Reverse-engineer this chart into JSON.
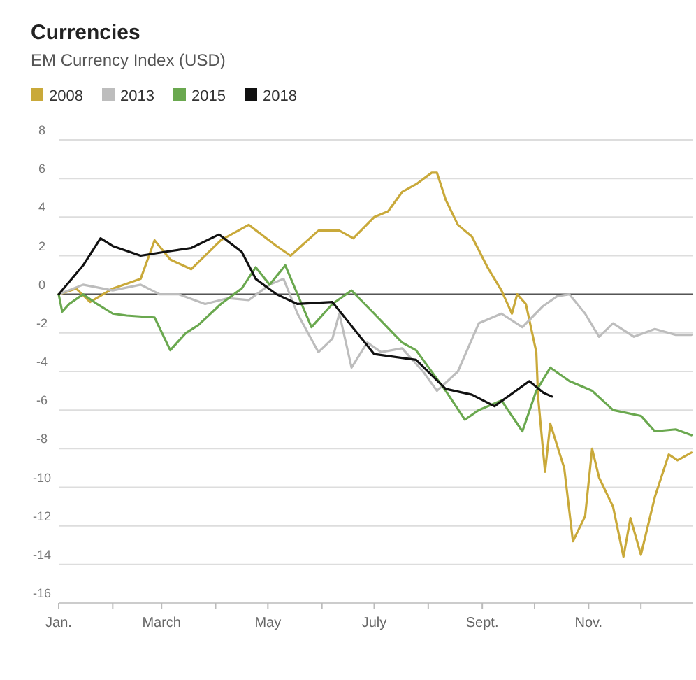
{
  "chart_data": {
    "type": "line",
    "title": "Currencies",
    "subtitle": "EM Currency Index (USD)",
    "xlim": [
      "--01-01",
      "--12-31"
    ],
    "xticks": [
      {
        "value": "--01-01",
        "label": "Jan."
      },
      {
        "value": "--02-01",
        "label": null
      },
      {
        "value": "--03-01",
        "label": "March"
      },
      {
        "value": "--04-01",
        "label": null
      },
      {
        "value": "--05-01",
        "label": "May"
      },
      {
        "value": "--06-01",
        "label": null
      },
      {
        "value": "--07-01",
        "label": "July"
      },
      {
        "value": "--08-01",
        "label": null
      },
      {
        "value": "--09-01",
        "label": "Sept."
      },
      {
        "value": "--10-01",
        "label": null
      },
      {
        "value": "--11-01",
        "label": "Nov."
      },
      {
        "value": "--12-01",
        "label": null
      }
    ],
    "ylim": [
      -16,
      8
    ],
    "yticks": [
      8,
      6,
      4,
      2,
      0,
      -2,
      -4,
      -6,
      -8,
      -10,
      -12,
      -14,
      -16
    ],
    "grid": "y",
    "legend": "top left",
    "line_style": "solid",
    "marker": "none",
    "ref_lines": [
      {
        "axis": "y",
        "value": 0,
        "color": "#555555"
      }
    ],
    "series": [
      {
        "name": "2008",
        "color": "#c9a93a",
        "x": [
          "--01-01",
          "--01-11",
          "--01-19",
          "--02-01",
          "--02-17",
          "--02-25",
          "--03-06",
          "--03-18",
          "--04-04",
          "--04-20",
          "--05-06",
          "--05-14",
          "--05-30",
          "--06-11",
          "--06-19",
          "--07-01",
          "--07-09",
          "--07-17",
          "--07-25",
          "--08-03",
          "--08-06",
          "--08-11",
          "--08-18",
          "--08-26",
          "--09-04",
          "--09-12",
          "--09-18",
          "--09-21",
          "--09-26",
          "--10-02",
          "--10-03",
          "--10-07",
          "--10-10",
          "--10-18",
          "--10-23",
          "--10-30",
          "--11-03",
          "--11-07",
          "--11-15",
          "--11-21",
          "--11-25",
          "--12-01",
          "--12-09",
          "--12-17",
          "--12-22",
          "--12-30"
        ],
        "values": [
          0,
          0.3,
          -0.4,
          0.3,
          0.8,
          2.8,
          1.8,
          1.3,
          2.8,
          3.6,
          2.5,
          2,
          3.3,
          3.3,
          2.9,
          4,
          4.3,
          5.3,
          5.7,
          6.3,
          6.3,
          4.9,
          3.6,
          3,
          1.4,
          0.2,
          -1,
          0,
          -0.5,
          -3,
          -5.3,
          -9.2,
          -6.7,
          -9,
          -12.8,
          -11.5,
          -8,
          -9.5,
          -11,
          -13.6,
          -11.6,
          -13.5,
          -10.5,
          -8.3,
          -8.6,
          -8.2
        ]
      },
      {
        "name": "2013",
        "color": "#bdbdbd",
        "x": [
          "--01-01",
          "--01-15",
          "--02-01",
          "--02-17",
          "--02-28",
          "--03-11",
          "--03-26",
          "--04-08",
          "--04-20",
          "--05-02",
          "--05-10",
          "--05-18",
          "--05-30",
          "--06-07",
          "--06-11",
          "--06-18",
          "--06-27",
          "--07-05",
          "--07-17",
          "--07-29",
          "--08-06",
          "--08-18",
          "--08-30",
          "--09-12",
          "--09-24",
          "--10-06",
          "--10-14",
          "--10-21",
          "--10-30",
          "--11-07",
          "--11-15",
          "--11-27",
          "--12-09",
          "--12-21",
          "--12-30"
        ],
        "values": [
          0,
          0.5,
          0.2,
          0.5,
          0,
          0,
          -0.5,
          -0.2,
          -0.3,
          0.5,
          0.8,
          -1,
          -3,
          -2.3,
          -1,
          -3.8,
          -2.5,
          -3,
          -2.8,
          -4,
          -5,
          -4,
          -1.5,
          -1,
          -1.7,
          -0.6,
          -0.1,
          0,
          -1,
          -2.2,
          -1.5,
          -2.2,
          -1.8,
          -2.1,
          -2.1
        ]
      },
      {
        "name": "2015",
        "color": "#6aa84f",
        "x": [
          "--01-01",
          "--01-03",
          "--01-07",
          "--01-15",
          "--01-23",
          "--02-01",
          "--02-09",
          "--02-25",
          "--03-06",
          "--03-15",
          "--03-22",
          "--04-04",
          "--04-16",
          "--04-24",
          "--05-02",
          "--05-11",
          "--05-18",
          "--05-26",
          "--06-07",
          "--06-18",
          "--07-01",
          "--07-17",
          "--07-25",
          "--08-11",
          "--08-22",
          "--08-30",
          "--09-12",
          "--09-24",
          "--10-02",
          "--10-10",
          "--10-21",
          "--11-03",
          "--11-15",
          "--12-01",
          "--12-09",
          "--12-21",
          "--12-30"
        ],
        "values": [
          0,
          -0.9,
          -0.5,
          0,
          -0.5,
          -1,
          -1.1,
          -1.2,
          -2.9,
          -2,
          -1.6,
          -0.5,
          0.3,
          1.4,
          0.5,
          1.5,
          0,
          -1.7,
          -0.5,
          0.2,
          -1,
          -2.5,
          -2.9,
          -5,
          -6.5,
          -6,
          -5.5,
          -7.1,
          -5,
          -3.8,
          -4.5,
          -5,
          -6,
          -6.3,
          -7.1,
          -7,
          -7.3
        ]
      },
      {
        "name": "2018",
        "color": "#111111",
        "x": [
          "--01-01",
          "--01-15",
          "--01-25",
          "--02-01",
          "--02-17",
          "--03-03",
          "--03-18",
          "--04-03",
          "--04-16",
          "--04-24",
          "--05-06",
          "--05-18",
          "--06-07",
          "--06-15",
          "--07-01",
          "--07-25",
          "--08-11",
          "--08-26",
          "--09-08",
          "--09-28",
          "--10-06",
          "--10-11"
        ],
        "values": [
          0,
          1.5,
          2.9,
          2.5,
          2,
          2.2,
          2.4,
          3.1,
          2.2,
          0.8,
          0,
          -0.5,
          -0.4,
          -1.3,
          -3.1,
          -3.4,
          -4.9,
          -5.2,
          -5.8,
          -4.5,
          -5.1,
          -5.3
        ]
      }
    ]
  }
}
